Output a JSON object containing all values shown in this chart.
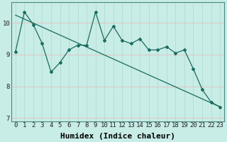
{
  "title": "",
  "xlabel": "Humidex (Indice chaleur)",
  "ylabel": "",
  "background_color": "#c8ece6",
  "plot_bg_color": "#c8ece6",
  "grid_color_v": "#aed8d0",
  "grid_color_h": "#e8b8b8",
  "line_color": "#1a6b60",
  "ylim": [
    6.9,
    10.65
  ],
  "xlim": [
    -0.5,
    23.5
  ],
  "yticks": [
    7,
    8,
    9,
    10
  ],
  "xticks": [
    0,
    1,
    2,
    3,
    4,
    5,
    6,
    7,
    8,
    9,
    10,
    11,
    12,
    13,
    14,
    15,
    16,
    17,
    18,
    19,
    20,
    21,
    22,
    23
  ],
  "series1_x": [
    0,
    1,
    2,
    3,
    4,
    5,
    6,
    7,
    8,
    9,
    10,
    11,
    12,
    13,
    14,
    15,
    16,
    17,
    18,
    19,
    20,
    21,
    22,
    23
  ],
  "series1_y": [
    9.1,
    10.35,
    9.95,
    9.35,
    8.45,
    8.75,
    9.15,
    9.3,
    9.3,
    10.35,
    9.45,
    9.9,
    9.45,
    9.35,
    9.5,
    9.15,
    9.15,
    9.25,
    9.05,
    9.15,
    8.55,
    7.9,
    7.5,
    7.35
  ],
  "trend_x": [
    0,
    23
  ],
  "trend_y": [
    10.25,
    7.35
  ],
  "marker": "D",
  "markersize": 2.0,
  "linewidth": 0.9,
  "font_family": "monospace",
  "xlabel_fontsize": 8,
  "tick_fontsize": 6.5
}
